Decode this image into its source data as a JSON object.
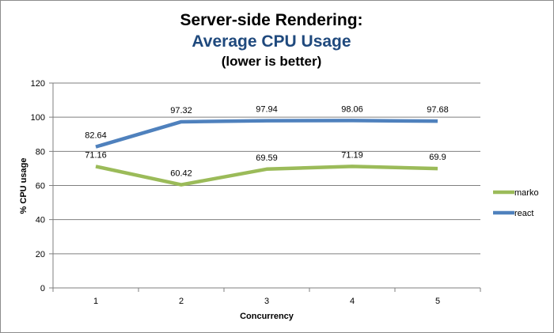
{
  "colors": {
    "marko": "#9bbb59",
    "react": "#4f81bd",
    "subtitle": "#1f497d",
    "grid": "#7f7f7f"
  },
  "chart_data": {
    "type": "line",
    "title": "Server-side Rendering:",
    "subtitle": "Average CPU Usage",
    "note": "(lower is better)",
    "xlabel": "Concurrency",
    "ylabel": "% CPU usage",
    "categories": [
      "1",
      "2",
      "3",
      "4",
      "5"
    ],
    "ylim": [
      0,
      120
    ],
    "yticks": [
      0,
      20,
      40,
      60,
      80,
      100,
      120
    ],
    "grid": true,
    "legend_position": "right",
    "series": [
      {
        "name": "marko",
        "color": "#9bbb59",
        "values": [
          71.16,
          60.42,
          69.59,
          71.19,
          69.9
        ],
        "labels": [
          "71.16",
          "60.42",
          "69.59",
          "71.19",
          "69.9"
        ]
      },
      {
        "name": "react",
        "color": "#4f81bd",
        "values": [
          82.64,
          97.32,
          97.94,
          98.06,
          97.68
        ],
        "labels": [
          "82.64",
          "97.32",
          "97.94",
          "98.06",
          "97.68"
        ]
      }
    ]
  }
}
